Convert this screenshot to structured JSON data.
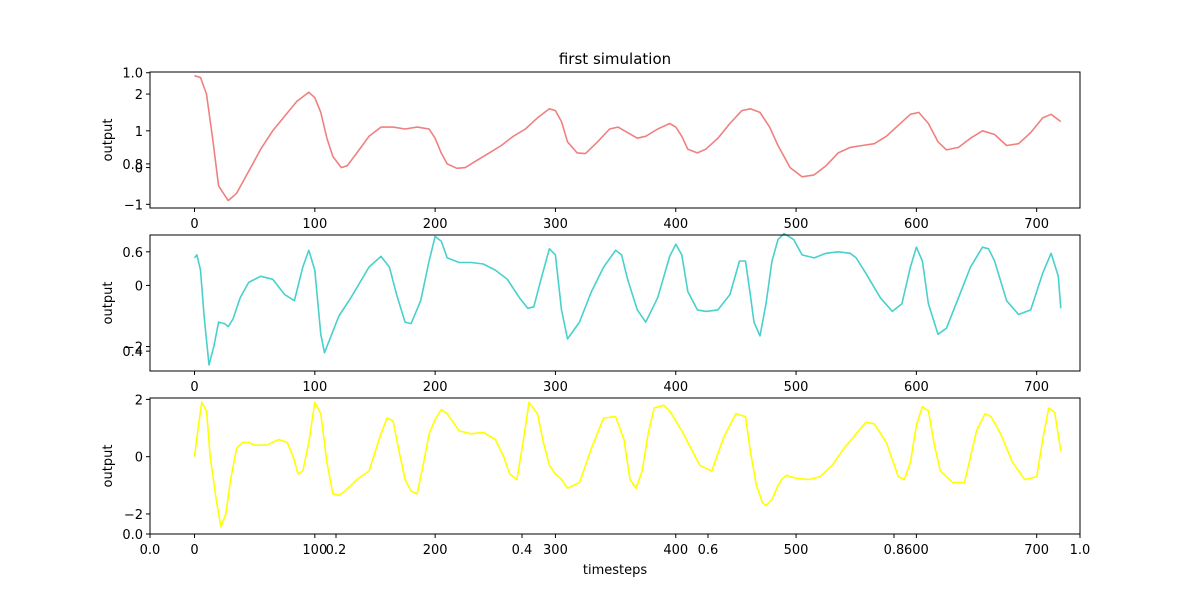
{
  "chart_data": {
    "type": "line",
    "title": "first simulation",
    "xlabel": "timesteps",
    "panels": [
      {
        "ylabel": "output",
        "color": "#f08080",
        "xlim": [
          -37,
          736
        ],
        "ylim": [
          -1.1,
          2.6
        ],
        "xticks": [
          0,
          100,
          200,
          300,
          400,
          500,
          600,
          700
        ],
        "yticks": [
          -1,
          0,
          1,
          2
        ],
        "x": [
          0,
          5,
          10,
          15,
          20,
          28,
          35,
          45,
          55,
          65,
          75,
          85,
          95,
          100,
          105,
          110,
          115,
          122,
          127,
          135,
          145,
          155,
          165,
          175,
          185,
          195,
          200,
          205,
          210,
          218,
          225,
          235,
          245,
          255,
          265,
          275,
          285,
          295,
          300,
          305,
          310,
          318,
          325,
          335,
          345,
          352,
          360,
          368,
          375,
          385,
          395,
          400,
          405,
          410,
          418,
          425,
          435,
          445,
          455,
          462,
          470,
          478,
          485,
          495,
          505,
          515,
          525,
          535,
          545,
          555,
          565,
          575,
          585,
          595,
          602,
          610,
          618,
          625,
          635,
          645,
          655,
          665,
          675,
          685,
          695,
          705,
          712,
          720
        ],
        "y": [
          2.5,
          2.45,
          2.0,
          0.8,
          -0.5,
          -0.9,
          -0.7,
          -0.1,
          0.5,
          1.0,
          1.4,
          1.8,
          2.05,
          1.9,
          1.5,
          0.8,
          0.3,
          0.0,
          0.05,
          0.4,
          0.85,
          1.1,
          1.1,
          1.05,
          1.1,
          1.05,
          0.8,
          0.4,
          0.1,
          -0.02,
          0.0,
          0.2,
          0.4,
          0.6,
          0.85,
          1.05,
          1.35,
          1.6,
          1.55,
          1.25,
          0.7,
          0.4,
          0.38,
          0.7,
          1.05,
          1.1,
          0.95,
          0.8,
          0.85,
          1.05,
          1.2,
          1.1,
          0.85,
          0.5,
          0.4,
          0.5,
          0.8,
          1.2,
          1.55,
          1.6,
          1.5,
          1.1,
          0.6,
          0.0,
          -0.25,
          -0.2,
          0.05,
          0.4,
          0.55,
          0.6,
          0.65,
          0.85,
          1.15,
          1.45,
          1.5,
          1.2,
          0.7,
          0.48,
          0.55,
          0.8,
          1.0,
          0.9,
          0.6,
          0.65,
          0.95,
          1.35,
          1.45,
          1.25
        ],
        "overlay_yticks": [
          {
            "label": "1.0",
            "v": 2.58
          },
          {
            "label": "0.8",
            "v": 0.1
          }
        ]
      },
      {
        "ylabel": "output",
        "color": "#48d1cc",
        "xlim": [
          -37,
          736
        ],
        "ylim": [
          -2.8,
          1.65
        ],
        "xticks": [
          0,
          100,
          200,
          300,
          400,
          500,
          600,
          700
        ],
        "yticks": [
          -2,
          0
        ],
        "x": [
          0,
          2,
          5,
          8,
          12,
          16,
          20,
          25,
          28,
          32,
          38,
          45,
          55,
          65,
          75,
          83,
          90,
          95,
          100,
          105,
          108,
          115,
          120,
          130,
          145,
          155,
          162,
          168,
          175,
          180,
          188,
          195,
          200,
          205,
          210,
          220,
          230,
          240,
          250,
          260,
          270,
          277,
          282,
          288,
          295,
          300,
          305,
          310,
          320,
          330,
          340,
          350,
          355,
          360,
          368,
          375,
          385,
          395,
          400,
          405,
          410,
          418,
          425,
          435,
          445,
          453,
          458,
          462,
          465,
          470,
          475,
          480,
          485,
          490,
          498,
          505,
          515,
          525,
          535,
          545,
          550,
          558,
          570,
          580,
          588,
          595,
          600,
          605,
          610,
          618,
          625,
          635,
          645,
          655,
          660,
          665,
          675,
          685,
          695,
          705,
          712,
          718,
          720
        ],
        "y": [
          0.9,
          1.0,
          0.5,
          -1.0,
          -2.6,
          -2.0,
          -1.2,
          -1.25,
          -1.35,
          -1.1,
          -0.4,
          0.1,
          0.3,
          0.2,
          -0.3,
          -0.5,
          0.6,
          1.15,
          0.5,
          -1.6,
          -2.2,
          -1.5,
          -1.0,
          -0.4,
          0.6,
          0.95,
          0.6,
          -0.3,
          -1.2,
          -1.25,
          -0.5,
          0.8,
          1.6,
          1.45,
          0.9,
          0.75,
          0.75,
          0.7,
          0.5,
          0.2,
          -0.4,
          -0.75,
          -0.7,
          0.2,
          1.2,
          1.0,
          -0.8,
          -1.75,
          -1.2,
          -0.2,
          0.6,
          1.15,
          1.0,
          0.2,
          -0.8,
          -1.2,
          -0.4,
          0.95,
          1.35,
          1.0,
          -0.2,
          -0.8,
          -0.85,
          -0.8,
          -0.3,
          0.8,
          0.8,
          -0.3,
          -1.2,
          -1.65,
          -0.6,
          0.8,
          1.5,
          1.7,
          1.5,
          1.0,
          0.9,
          1.05,
          1.1,
          1.05,
          0.9,
          0.4,
          -0.4,
          -0.85,
          -0.6,
          0.6,
          1.25,
          0.8,
          -0.6,
          -1.6,
          -1.4,
          -0.4,
          0.6,
          1.25,
          1.2,
          0.8,
          -0.5,
          -0.95,
          -0.8,
          0.4,
          1.05,
          0.3,
          -0.75
        ],
        "overlay_yticks": [
          {
            "label": "0.6",
            "v": 1.1
          },
          {
            "label": "0.4",
            "v": -2.15
          }
        ]
      },
      {
        "ylabel": "output",
        "color": "#ffff00",
        "xlim": [
          -37,
          736
        ],
        "ylim": [
          -2.7,
          2.05
        ],
        "xticks": [
          0,
          100,
          200,
          300,
          400,
          500,
          600,
          700
        ],
        "yticks": [
          -2,
          0,
          2
        ],
        "x": [
          0,
          3,
          6,
          10,
          13,
          18,
          22,
          26,
          30,
          35,
          40,
          45,
          50,
          60,
          65,
          70,
          77,
          82,
          86,
          90,
          95,
          100,
          105,
          110,
          115,
          120,
          125,
          135,
          145,
          155,
          160,
          165,
          170,
          175,
          180,
          185,
          190,
          195,
          200,
          205,
          210,
          215,
          220,
          230,
          240,
          250,
          257,
          262,
          268,
          273,
          278,
          285,
          290,
          295,
          300,
          305,
          310,
          320,
          330,
          340,
          350,
          357,
          362,
          367,
          372,
          377,
          382,
          390,
          395,
          400,
          405,
          410,
          415,
          420,
          430,
          440,
          450,
          458,
          462,
          467,
          472,
          475,
          480,
          485,
          488,
          492,
          495,
          500,
          510,
          520,
          530,
          540,
          550,
          558,
          565,
          575,
          585,
          590,
          595,
          600,
          605,
          610,
          615,
          620,
          630,
          640,
          650,
          657,
          662,
          670,
          680,
          690,
          700,
          705,
          710,
          715,
          720
        ],
        "y": [
          0.0,
          1.0,
          1.9,
          1.6,
          0.0,
          -1.5,
          -2.45,
          -2.0,
          -0.8,
          0.3,
          0.5,
          0.5,
          0.4,
          0.4,
          0.5,
          0.6,
          0.5,
          0.0,
          -0.6,
          -0.5,
          0.5,
          1.9,
          1.5,
          -0.2,
          -1.3,
          -1.35,
          -1.2,
          -0.8,
          -0.5,
          0.8,
          1.35,
          1.25,
          0.2,
          -0.8,
          -1.2,
          -1.3,
          -0.3,
          0.8,
          1.3,
          1.65,
          1.5,
          1.2,
          0.9,
          0.8,
          0.85,
          0.6,
          0.0,
          -0.6,
          -0.8,
          0.5,
          1.9,
          1.5,
          0.5,
          -0.3,
          -0.6,
          -0.8,
          -1.1,
          -0.9,
          0.3,
          1.35,
          1.4,
          0.6,
          -0.8,
          -1.1,
          -0.5,
          0.8,
          1.7,
          1.8,
          1.6,
          1.25,
          0.9,
          0.5,
          0.1,
          -0.3,
          -0.5,
          0.7,
          1.5,
          1.4,
          0.2,
          -1.0,
          -1.6,
          -1.7,
          -1.5,
          -1.0,
          -0.8,
          -0.65,
          -0.7,
          -0.75,
          -0.8,
          -0.7,
          -0.3,
          0.3,
          0.8,
          1.2,
          1.15,
          0.5,
          -0.7,
          -0.8,
          -0.2,
          1.1,
          1.75,
          1.6,
          0.4,
          -0.5,
          -0.9,
          -0.9,
          0.9,
          1.5,
          1.4,
          0.8,
          -0.2,
          -0.8,
          -0.7,
          0.6,
          1.7,
          1.55,
          0.2
        ]
      }
    ],
    "overlay_axis": {
      "xlim": [
        0.0,
        1.0
      ],
      "ylim": [
        0.0,
        1.0
      ],
      "xticks": [
        "0.0",
        "0.2",
        "0.4",
        "0.6",
        "0.8",
        "1.0"
      ],
      "yticks": [
        "0.0"
      ]
    }
  }
}
